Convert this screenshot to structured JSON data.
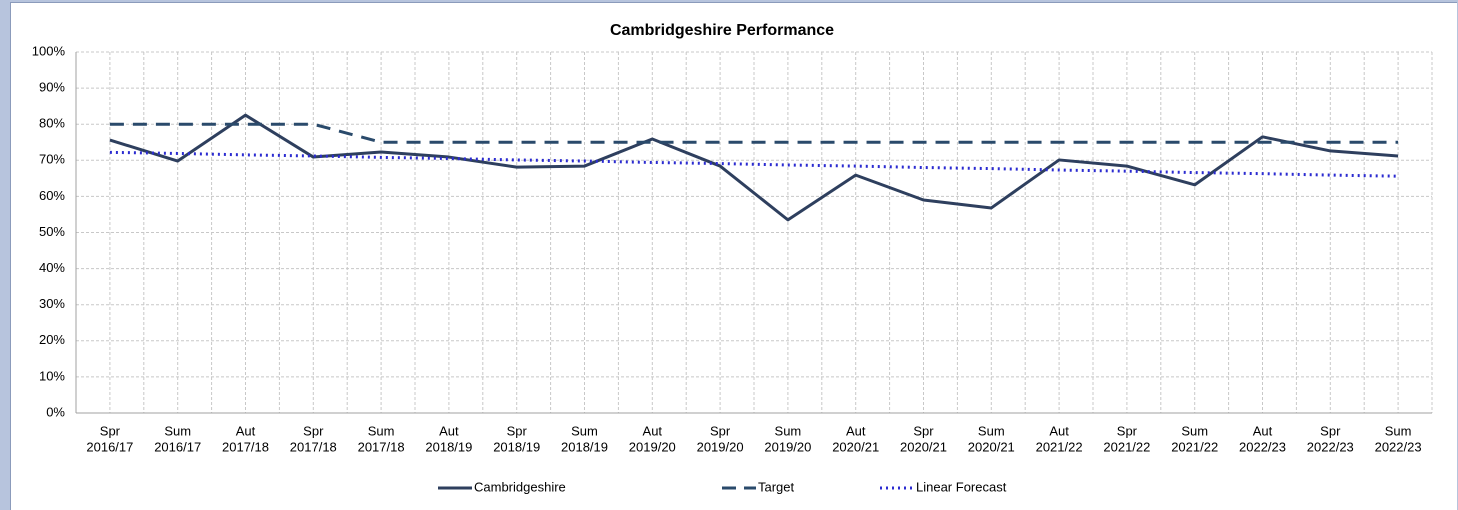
{
  "chart_data": {
    "type": "line",
    "title": "Cambridgeshire Performance",
    "categories": [
      [
        "Spr",
        "2016/17"
      ],
      [
        "Sum",
        "2016/17"
      ],
      [
        "Aut",
        "2017/18"
      ],
      [
        "Spr",
        "2017/18"
      ],
      [
        "Sum",
        "2017/18"
      ],
      [
        "Aut",
        "2018/19"
      ],
      [
        "Spr",
        "2018/19"
      ],
      [
        "Sum",
        "2018/19"
      ],
      [
        "Aut",
        "2019/20"
      ],
      [
        "Spr",
        "2019/20"
      ],
      [
        "Sum",
        "2019/20"
      ],
      [
        "Aut",
        "2020/21"
      ],
      [
        "Spr",
        "2020/21"
      ],
      [
        "Sum",
        "2020/21"
      ],
      [
        "Aut",
        "2021/22"
      ],
      [
        "Spr",
        "2021/22"
      ],
      [
        "Sum",
        "2021/22"
      ],
      [
        "Aut",
        "2022/23"
      ],
      [
        "Spr",
        "2022/23"
      ],
      [
        "Sum",
        "2022/23"
      ]
    ],
    "series": [
      {
        "name": "Cambridgeshire",
        "color": "#2e3f5e",
        "dash": "solid",
        "values": [
          75.6,
          69.8,
          82.5,
          70.9,
          72.3,
          70.9,
          68.1,
          68.4,
          75.9,
          68.4,
          53.5,
          65.9,
          59.0,
          56.8,
          70.1,
          68.4,
          63.2,
          76.5,
          72.6,
          71.2
        ]
      },
      {
        "name": "Target",
        "color": "#2a4a6b",
        "dash": "dashed",
        "values": [
          80,
          80,
          80,
          80,
          75,
          75,
          75,
          75,
          75,
          75,
          75,
          75,
          75,
          75,
          75,
          75,
          75,
          75,
          75,
          75
        ]
      },
      {
        "name": "Linear Forecast",
        "color": "#2b2bd0",
        "dash": "dotted",
        "values": [
          72.2,
          71.9,
          71.5,
          71.2,
          70.8,
          70.5,
          70.1,
          69.8,
          69.4,
          69.1,
          68.7,
          68.4,
          68.0,
          67.7,
          67.3,
          67.0,
          66.6,
          66.3,
          65.9,
          65.6
        ]
      }
    ],
    "ylim": [
      0,
      100
    ],
    "yticks": [
      {
        "value": 0,
        "label": "0%"
      },
      {
        "value": 10,
        "label": "10%"
      },
      {
        "value": 20,
        "label": "20%"
      },
      {
        "value": 30,
        "label": "30%"
      },
      {
        "value": 40,
        "label": "40%"
      },
      {
        "value": 50,
        "label": "50%"
      },
      {
        "value": 60,
        "label": "60%"
      },
      {
        "value": 70,
        "label": "70%"
      },
      {
        "value": 80,
        "label": "80%"
      },
      {
        "value": 90,
        "label": "90%"
      },
      {
        "value": 100,
        "label": "100%"
      }
    ],
    "grid": true,
    "legend": "bottom"
  }
}
